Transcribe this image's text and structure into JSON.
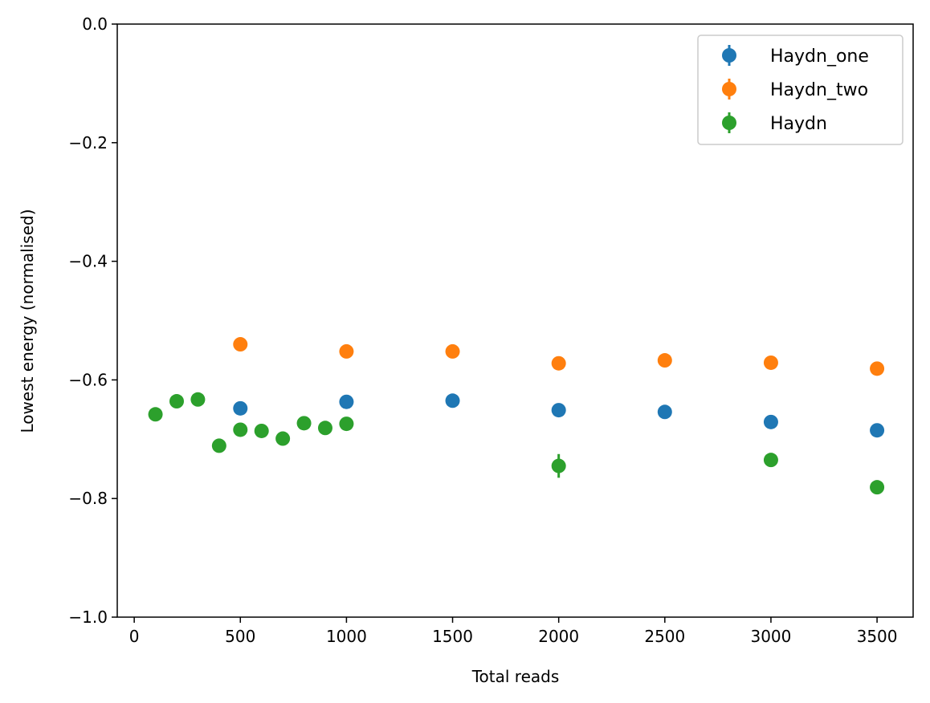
{
  "chart_data": {
    "type": "scatter",
    "title": "",
    "xlabel": "Total reads",
    "ylabel": "Lowest energy (normalised)",
    "xlim": [
      -80,
      3670
    ],
    "ylim": [
      -1.0,
      0.0
    ],
    "xticks": [
      0,
      500,
      1000,
      1500,
      2000,
      2500,
      3000,
      3500
    ],
    "xtick_labels": [
      "0",
      "500",
      "1000",
      "1500",
      "2000",
      "2500",
      "3000",
      "3500"
    ],
    "yticks": [
      -1.0,
      -0.8,
      -0.6,
      -0.4,
      -0.2,
      0.0
    ],
    "ytick_labels": [
      "−1.0",
      "−0.8",
      "−0.6",
      "−0.4",
      "−0.2",
      "0.0"
    ],
    "grid": false,
    "legend_position": "top-right",
    "series": [
      {
        "name": "Haydn_one",
        "color": "#1f77b4",
        "x": [
          500,
          1000,
          1500,
          2000,
          2500,
          3000,
          3500
        ],
        "y": [
          -0.648,
          -0.637,
          -0.635,
          -0.651,
          -0.654,
          -0.671,
          -0.685
        ],
        "yerr": [
          0.005,
          0.005,
          0.005,
          0.005,
          0.005,
          0.005,
          0.005
        ]
      },
      {
        "name": "Haydn_two",
        "color": "#ff7f0e",
        "x": [
          500,
          1000,
          1500,
          2000,
          2500,
          3000,
          3500
        ],
        "y": [
          -0.54,
          -0.552,
          -0.552,
          -0.572,
          -0.567,
          -0.571,
          -0.581
        ],
        "yerr": [
          0.005,
          0.005,
          0.005,
          0.005,
          0.005,
          0.005,
          0.005
        ]
      },
      {
        "name": "Haydn",
        "color": "#2ca02c",
        "x": [
          100,
          200,
          300,
          400,
          500,
          600,
          700,
          800,
          900,
          1000,
          2000,
          3000,
          3500
        ],
        "y": [
          -0.658,
          -0.636,
          -0.633,
          -0.711,
          -0.684,
          -0.686,
          -0.699,
          -0.673,
          -0.681,
          -0.674,
          -0.745,
          -0.735,
          -0.781
        ],
        "yerr": [
          0.005,
          0.005,
          0.005,
          0.005,
          0.005,
          0.005,
          0.005,
          0.005,
          0.005,
          0.005,
          0.02,
          0.005,
          0.005
        ]
      }
    ]
  }
}
